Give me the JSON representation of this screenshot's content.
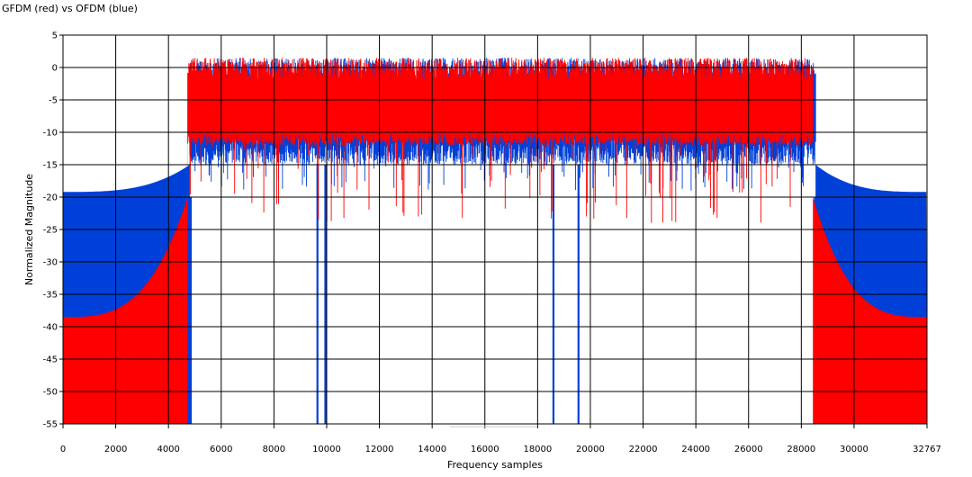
{
  "chart_data": {
    "type": "area",
    "title": "GFDM (red) vs OFDM (blue)",
    "xlabel": "Frequency samples",
    "ylabel": "Normalized Magnitude",
    "xlim": [
      0,
      32767
    ],
    "ylim": [
      -55,
      5
    ],
    "grid": true,
    "x_ticks": [
      {
        "value": 0,
        "label": "0"
      },
      {
        "value": 2000,
        "label": "2000"
      },
      {
        "value": 4000,
        "label": "4000"
      },
      {
        "value": 6000,
        "label": "6000"
      },
      {
        "value": 8000,
        "label": "8000"
      },
      {
        "value": 10000,
        "label": "10000"
      },
      {
        "value": 12000,
        "label": "12000"
      },
      {
        "value": 14000,
        "label": "14000"
      },
      {
        "value": 16000,
        "label": "16000"
      },
      {
        "value": 18000,
        "label": "18000"
      },
      {
        "value": 20000,
        "label": "20000"
      },
      {
        "value": 22000,
        "label": "22000"
      },
      {
        "value": 24000,
        "label": "24000"
      },
      {
        "value": 26000,
        "label": "26000"
      },
      {
        "value": 28000,
        "label": "28000"
      },
      {
        "value": 30000,
        "label": "30000"
      },
      {
        "value": 32767,
        "label": "32767"
      }
    ],
    "y_ticks": [
      5,
      0,
      -5,
      -10,
      -15,
      -20,
      -25,
      -30,
      -35,
      -40,
      -45,
      -50,
      -55
    ],
    "series": [
      {
        "color": "#0040d8",
        "band": {
          "x_start": 4810,
          "x_end": 28540,
          "upper": 1.5,
          "lower": -15,
          "min_dips": -19
        },
        "deep_nulls": [
          9650,
          9950,
          18600,
          19550
        ],
        "edge_notches": [
          4780,
          28580
        ],
        "out_of_band": {
          "at_edges": -19.2,
          "near_band": -15
        }
      },
      {
        "color": "#ff0000",
        "band": {
          "x_start": 4730,
          "x_end": 28440,
          "upper": 1.5,
          "lower": -12,
          "min_dips": -24
        },
        "out_of_band": {
          "at_edges": -38.5,
          "near_band": -20
        }
      }
    ]
  }
}
